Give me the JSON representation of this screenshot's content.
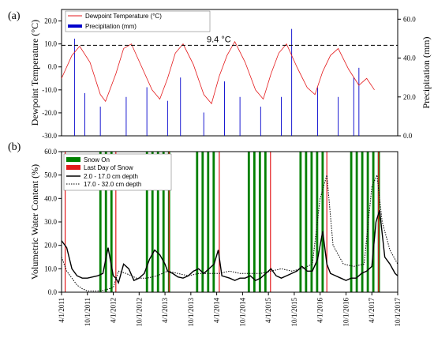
{
  "chart_data": [
    {
      "panel": "(a)",
      "type": "line",
      "ylabel_left": "Dewpoint Temperature (°C)",
      "ylabel_right": "Precipitation (mm)",
      "ylim_left": [
        -30,
        25
      ],
      "ylim_right": [
        0,
        65
      ],
      "yticks_left": [
        "-30.0",
        "-20.0",
        "-10.0",
        "0.0",
        "10.0",
        "20.0"
      ],
      "yticks_right": [
        "0.0",
        "20.0",
        "40.0",
        "60.0"
      ],
      "legend": [
        "Dewpoint Temperature (°C)",
        "Precipitation (mm)"
      ],
      "threshold": {
        "value": 9.4,
        "label": "9.4 °C"
      },
      "series": [
        {
          "name": "Dewpoint Temperature (°C)",
          "color": "#e41a1c",
          "x": [
            2011.25,
            2011.45,
            2011.6,
            2011.8,
            2012.0,
            2012.1,
            2012.3,
            2012.45,
            2012.6,
            2012.8,
            2013.0,
            2013.15,
            2013.3,
            2013.45,
            2013.6,
            2013.8,
            2014.0,
            2014.15,
            2014.3,
            2014.45,
            2014.6,
            2014.8,
            2015.0,
            2015.15,
            2015.3,
            2015.45,
            2015.6,
            2015.8,
            2016.0,
            2016.15,
            2016.3,
            2016.45,
            2016.6,
            2016.8,
            2017.0,
            2017.15,
            2017.3
          ],
          "values": [
            -5,
            5,
            9,
            2,
            -12,
            -15,
            -3,
            8,
            10,
            0,
            -10,
            -14,
            -5,
            6,
            10,
            1,
            -12,
            -16,
            -4,
            5,
            11,
            2,
            -10,
            -14,
            -3,
            6,
            10,
            0,
            -9,
            -12,
            -2,
            5,
            8,
            -1,
            -8,
            -5,
            -10
          ]
        },
        {
          "name": "Precipitation (mm)",
          "color": "#0000cc",
          "x": [
            2011.5,
            2011.7,
            2012.0,
            2012.5,
            2012.9,
            2013.3,
            2013.55,
            2014.0,
            2014.4,
            2014.7,
            2015.1,
            2015.5,
            2015.7,
            2016.2,
            2016.6,
            2016.9,
            2017.0
          ],
          "values": [
            50,
            22,
            15,
            20,
            25,
            18,
            30,
            12,
            28,
            20,
            15,
            20,
            55,
            25,
            20,
            30,
            35
          ]
        }
      ]
    },
    {
      "panel": "(b)",
      "type": "line",
      "ylabel": "Volumetric Water Content (%)",
      "ylim": [
        0,
        60
      ],
      "yticks": [
        "0.0",
        "10.0",
        "20.0",
        "30.0",
        "40.0",
        "50.0",
        "60.0"
      ],
      "xlim": [
        2011.25,
        2017.75
      ],
      "xticks": [
        "4/1/2011",
        "10/1/2011",
        "4/1/2012",
        "10/1/2012",
        "4/1/2013",
        "10/1/2013",
        "4/1/2014",
        "10/1/2014",
        "4/1/2015",
        "10/1/2015",
        "4/1/2016",
        "10/1/2016",
        "4/1/2017",
        "10/1/2017"
      ],
      "legend": [
        "Snow On",
        "Last Day of Snow",
        "2.0 - 17.0 cm depth",
        "17.0 - 32.0 cm depth"
      ],
      "snow_on_periods": [
        [
          2011.98,
          2012.28
        ],
        [
          2012.88,
          2013.31
        ],
        [
          2013.85,
          2014.27
        ],
        [
          2014.85,
          2015.27
        ],
        [
          2015.85,
          2016.35
        ],
        [
          2016.83,
          2017.37
        ]
      ],
      "last_day_of_snow": [
        2011.32,
        2012.3,
        2013.33,
        2014.3,
        2015.29,
        2016.38,
        2017.38
      ],
      "series": [
        {
          "name": "2.0 - 17.0 cm depth",
          "style": "solid",
          "x": [
            2011.25,
            2011.35,
            2011.45,
            2011.55,
            2011.65,
            2011.75,
            2011.85,
            2011.95,
            2012.05,
            2012.15,
            2012.25,
            2012.3,
            2012.35,
            2012.45,
            2012.55,
            2012.65,
            2012.75,
            2012.85,
            2012.95,
            2013.05,
            2013.15,
            2013.25,
            2013.3,
            2013.4,
            2013.5,
            2013.6,
            2013.7,
            2013.8,
            2013.9,
            2014.0,
            2014.1,
            2014.2,
            2014.28,
            2014.35,
            2014.5,
            2014.6,
            2014.7,
            2014.8,
            2014.9,
            2015.0,
            2015.1,
            2015.2,
            2015.3,
            2015.4,
            2015.5,
            2015.6,
            2015.7,
            2015.8,
            2015.9,
            2016.0,
            2016.1,
            2016.2,
            2016.3,
            2016.38,
            2016.45,
            2016.55,
            2016.65,
            2016.75,
            2016.85,
            2016.95,
            2017.05,
            2017.15,
            2017.25,
            2017.33,
            2017.4,
            2017.5,
            2017.6,
            2017.7,
            2017.75
          ],
          "values": [
            22,
            19,
            10,
            7,
            6,
            6,
            6.5,
            7,
            8,
            19,
            7,
            6,
            4,
            12,
            10,
            5,
            6,
            8,
            14,
            18,
            16,
            12,
            9,
            8,
            6.5,
            6,
            7,
            9,
            10,
            8,
            10,
            12,
            18,
            7,
            6,
            5,
            6,
            6,
            7,
            5,
            6,
            8,
            10,
            7,
            6,
            7,
            8,
            9,
            11,
            9,
            9,
            14,
            26,
            12,
            8,
            7,
            6,
            5,
            6,
            6,
            8,
            9,
            11,
            30,
            35,
            15,
            12,
            8,
            7
          ]
        },
        {
          "name": "17.0 - 32.0 cm depth",
          "style": "dotted",
          "x": [
            2011.25,
            2011.35,
            2011.45,
            2011.55,
            2011.65,
            2011.75,
            2011.85,
            2011.95,
            2012.1,
            2012.25,
            2012.35,
            2012.5,
            2012.7,
            2012.9,
            2013.1,
            2013.3,
            2013.5,
            2013.7,
            2013.9,
            2014.1,
            2014.3,
            2014.5,
            2014.7,
            2014.9,
            2015.1,
            2015.3,
            2015.5,
            2015.7,
            2015.9,
            2016.1,
            2016.25,
            2016.38,
            2016.5,
            2016.7,
            2016.9,
            2017.1,
            2017.25,
            2017.35,
            2017.45,
            2017.6,
            2017.75
          ],
          "values": [
            15,
            9,
            6,
            3,
            1.5,
            0.5,
            0.5,
            0.5,
            1,
            2,
            9,
            8,
            6,
            6,
            7,
            9,
            8,
            7,
            8,
            8,
            8,
            9,
            8,
            8,
            8,
            9,
            10,
            9,
            10,
            12,
            40,
            50,
            20,
            12,
            11,
            12,
            45,
            50,
            30,
            18,
            12
          ]
        }
      ]
    }
  ]
}
